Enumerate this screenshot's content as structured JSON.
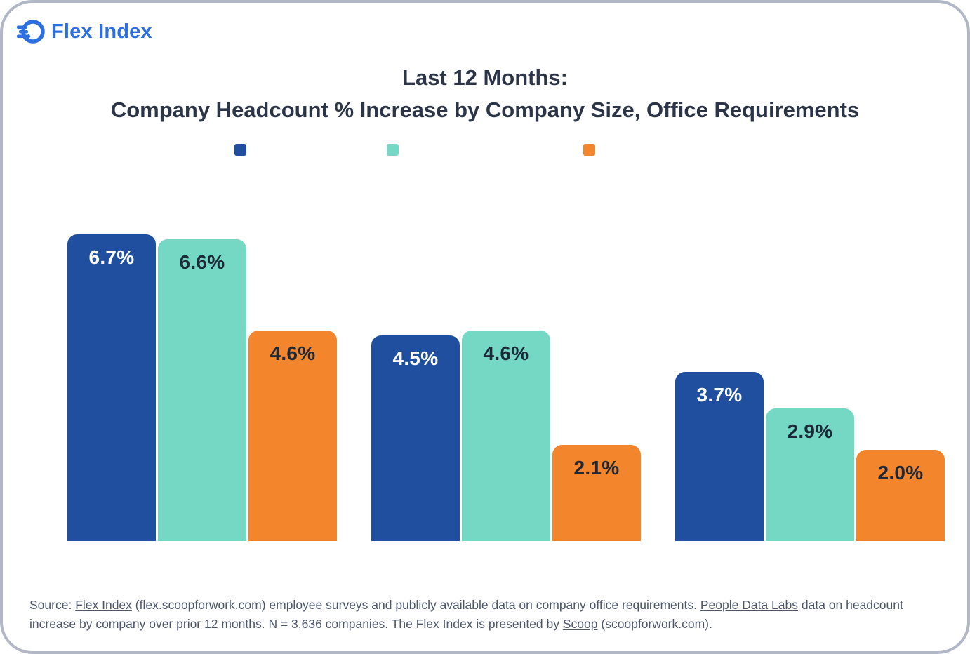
{
  "header": {
    "logo_text": "Flex Index",
    "brand_color": "#2B6FE0"
  },
  "title": {
    "line1": "Last 12 Months:",
    "line2": "Company Headcount % Increase by Company Size, Office Requirements"
  },
  "chart_data": {
    "type": "bar",
    "title": "Last 12 Months: Company Headcount % Increase by Company Size, Office Requirements",
    "categories": [
      "",
      "",
      ""
    ],
    "series": [
      {
        "name": "",
        "color": "#1F4F9E",
        "label_color": "#FFFFFF",
        "values": [
          6.7,
          4.5,
          3.7
        ]
      },
      {
        "name": "",
        "color": "#74D8C5",
        "label_color": "#1D2939",
        "values": [
          6.6,
          4.6,
          2.9
        ]
      },
      {
        "name": "",
        "color": "#F3852D",
        "label_color": "#1D2939",
        "values": [
          4.6,
          2.1,
          2.0
        ]
      }
    ],
    "value_label_format": "{v}%",
    "value_labels": [
      [
        "6.7%",
        "4.5%",
        "3.7%"
      ],
      [
        "6.6%",
        "4.6%",
        "2.9%"
      ],
      [
        "4.6%",
        "2.1%",
        "2.0%"
      ]
    ],
    "ylim": [
      0,
      7.5
    ],
    "grid": false,
    "legend_position": "top",
    "axis_tick_labels_visible": false
  },
  "footer": {
    "segments": [
      {
        "text": "Source: ",
        "link": false
      },
      {
        "text": "Flex Index",
        "link": true
      },
      {
        "text": " (flex.scoopforwork.com) employee surveys and publicly available data on company office requirements. ",
        "link": false
      },
      {
        "text": "People Data Labs",
        "link": true
      },
      {
        "text": " data on headcount increase by company over prior 12 months. N = 3,636 companies. The Flex Index is presented by ",
        "link": false
      },
      {
        "text": "Scoop",
        "link": true
      },
      {
        "text": " (scoopforwork.com).",
        "link": false
      }
    ]
  },
  "colors": {
    "background": "#FFFFFF",
    "border": "#B1B7C5",
    "title_text": "#2B3547",
    "source_text": "#4C566B"
  }
}
